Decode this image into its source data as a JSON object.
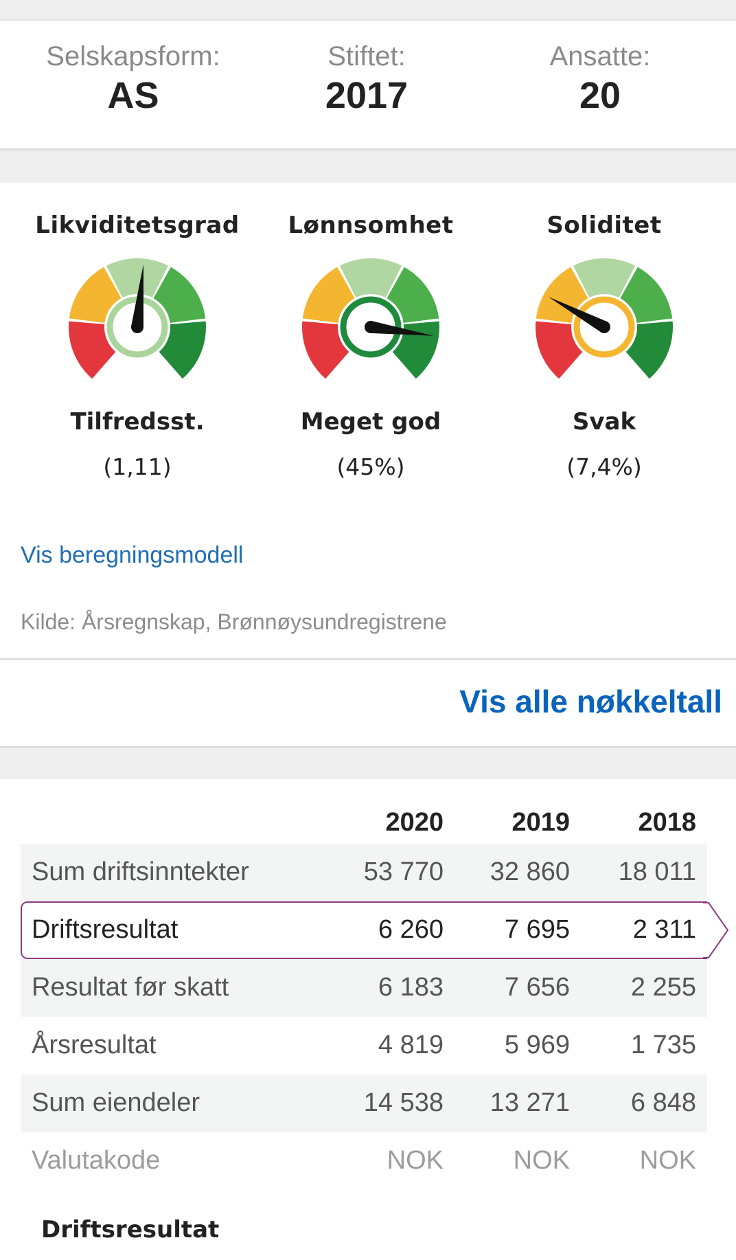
{
  "facts": [
    {
      "label": "Selskapsform:",
      "value": "AS"
    },
    {
      "label": "Stiftet:",
      "value": "2017"
    },
    {
      "label": "Ansatte:",
      "value": "20"
    }
  ],
  "gauges": [
    {
      "title": "Likviditetsgrad",
      "rating": "Tilfredsst.",
      "value": "(1,11)",
      "level": 0.52,
      "hub_color": "#a9d49b"
    },
    {
      "title": "Lønnsomhet",
      "rating": "Meget god",
      "value": "(45%)",
      "level": 0.85,
      "hub_color": "#1e8a3c"
    },
    {
      "title": "Soliditet",
      "rating": "Svak",
      "value": "(7,4%)",
      "level": 0.28,
      "hub_color": "#f4b630"
    }
  ],
  "gauge_colors": [
    "#e3373d",
    "#f4b630",
    "#b0d6a2",
    "#4caf4c",
    "#228b3a"
  ],
  "model_link": "Vis beregningsmodell",
  "source": "Kilde: Årsregnskap, Brønnøysundregistrene",
  "all_keyfigures_link": "Vis alle nøkkeltall",
  "table": {
    "years": [
      "2020",
      "2019",
      "2018"
    ],
    "rows": [
      {
        "name": "Sum driftsinntekter",
        "values": [
          "53 770",
          "32 860",
          "18 011"
        ]
      },
      {
        "name": "Driftsresultat",
        "values": [
          "6 260",
          "7 695",
          "2 311"
        ]
      },
      {
        "name": "Resultat før skatt",
        "values": [
          "6 183",
          "7 656",
          "2 255"
        ]
      },
      {
        "name": "Årsresultat",
        "values": [
          "4 819",
          "5 969",
          "1 735"
        ]
      },
      {
        "name": "Sum eiendeler",
        "values": [
          "14 538",
          "13 271",
          "6 848"
        ]
      },
      {
        "name": "Valutakode",
        "values": [
          "NOK",
          "NOK",
          "NOK"
        ]
      }
    ]
  },
  "chart_section_title": "Driftsresultat",
  "highlight_color": "#8e3a86"
}
